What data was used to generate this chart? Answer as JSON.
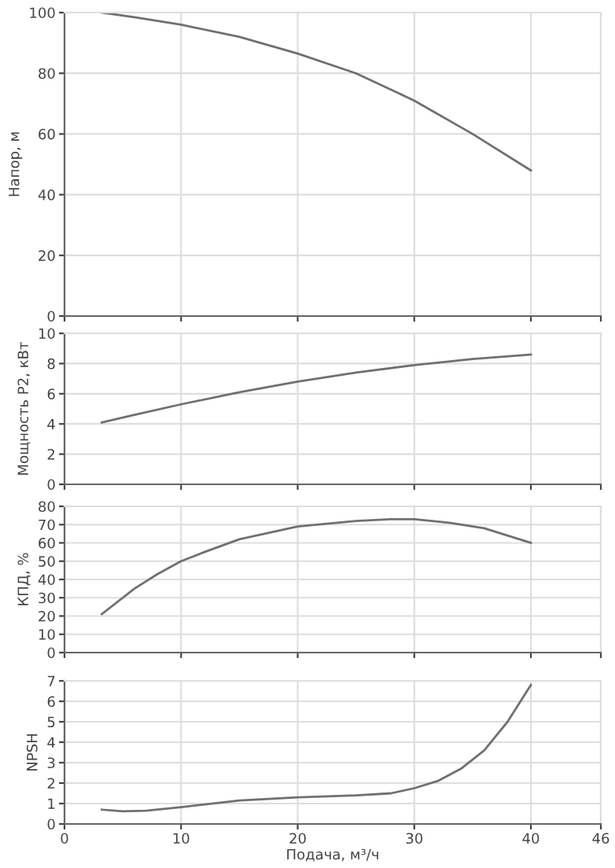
{
  "chart_data": [
    {
      "type": "line",
      "ylabel": "Напор, м",
      "xlim": [
        0,
        46
      ],
      "xticks": [
        0,
        10,
        20,
        30,
        40,
        46
      ],
      "ylim": [
        0,
        100
      ],
      "yticks": [
        0,
        20,
        40,
        60,
        80,
        100
      ],
      "grid": true,
      "tick_labels": "y",
      "line_style": "solid",
      "series": [
        {
          "color": "#707070",
          "x": [
            3.2,
            6,
            10,
            15,
            20,
            25,
            30,
            35,
            40
          ],
          "values": [
            100,
            98.5,
            96,
            92,
            86.5,
            80,
            71,
            60,
            48
          ]
        }
      ]
    },
    {
      "type": "line",
      "ylabel": "Мощность P2, кВт",
      "xlim": [
        0,
        46
      ],
      "xticks": [
        0,
        10,
        20,
        30,
        40,
        46
      ],
      "ylim": [
        0,
        10
      ],
      "yticks": [
        0,
        2,
        4,
        6,
        8,
        10
      ],
      "grid": true,
      "tick_labels": "y",
      "line_style": "solid",
      "series": [
        {
          "color": "#707070",
          "x": [
            3.2,
            6,
            10,
            15,
            20,
            25,
            30,
            35,
            40
          ],
          "values": [
            4.1,
            4.6,
            5.3,
            6.1,
            6.8,
            7.4,
            7.9,
            8.3,
            8.6
          ]
        }
      ]
    },
    {
      "type": "line",
      "ylabel": "КПД, %",
      "xlim": [
        0,
        46
      ],
      "xticks": [
        0,
        10,
        20,
        30,
        40,
        46
      ],
      "ylim": [
        0,
        80
      ],
      "yticks": [
        0,
        10,
        20,
        30,
        40,
        50,
        60,
        70,
        80
      ],
      "grid": true,
      "tick_labels": "y",
      "line_style": "solid",
      "series": [
        {
          "color": "#707070",
          "x": [
            3.2,
            6,
            8,
            10,
            12,
            15,
            20,
            25,
            28,
            30,
            33,
            36,
            40
          ],
          "values": [
            21,
            35,
            43,
            50,
            55,
            62,
            69,
            72,
            73,
            73,
            71,
            68,
            60
          ]
        }
      ]
    },
    {
      "type": "line",
      "ylabel": "NPSH",
      "xlabel": "Подача, м³/ч",
      "xlim": [
        0,
        46
      ],
      "xticks": [
        0,
        10,
        20,
        30,
        40,
        46
      ],
      "ylim": [
        0,
        7
      ],
      "yticks": [
        0,
        1,
        2,
        3,
        4,
        5,
        6,
        7
      ],
      "grid": true,
      "line_style": "solid",
      "series": [
        {
          "color": "#707070",
          "x": [
            3.2,
            5,
            7,
            10,
            15,
            20,
            25,
            28,
            30,
            32,
            34,
            36,
            38,
            40
          ],
          "values": [
            0.7,
            0.62,
            0.65,
            0.82,
            1.15,
            1.3,
            1.4,
            1.5,
            1.75,
            2.1,
            2.7,
            3.6,
            5.0,
            6.8
          ]
        }
      ]
    }
  ]
}
